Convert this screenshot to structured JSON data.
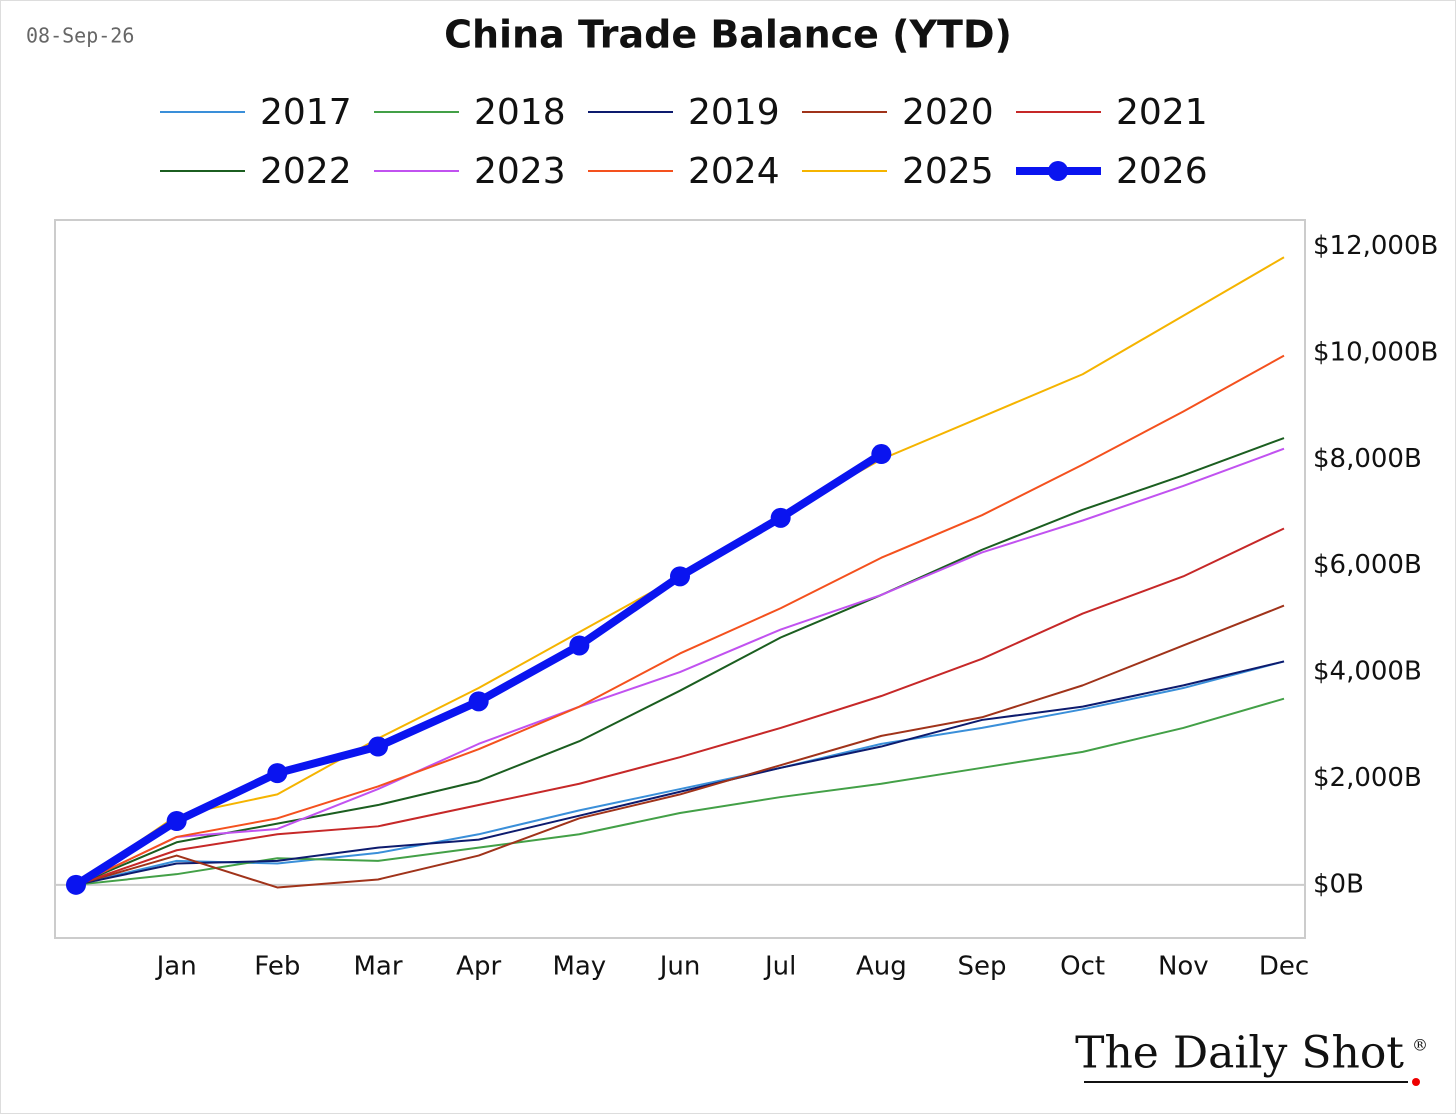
{
  "chart_data": {
    "type": "line",
    "date": "08-Sep-26",
    "title": "China Trade Balance (YTD)",
    "source": "The Daily Shot",
    "source_mark": "®",
    "categories": [
      null,
      "Jan",
      "Feb",
      "Mar",
      "Apr",
      "May",
      "Jun",
      "Jul",
      "Aug",
      "Sep",
      "Oct",
      "Nov",
      "Dec"
    ],
    "ylim": [
      -1000,
      12500
    ],
    "yticks": [
      {
        "value": 0,
        "label": "$0B"
      },
      {
        "value": 2000,
        "label": "$2,000B"
      },
      {
        "value": 4000,
        "label": "$4,000B"
      },
      {
        "value": 6000,
        "label": "$6,000B"
      },
      {
        "value": 8000,
        "label": "$8,000B"
      },
      {
        "value": 10000,
        "label": "$10,000B"
      },
      {
        "value": 12000,
        "label": "$12,000B"
      }
    ],
    "y_axis_side": "right",
    "zero_line": true,
    "legend": "top",
    "series": [
      {
        "name": "2017",
        "color": "#3a8fd9",
        "values": [
          0,
          450,
          400,
          600,
          950,
          1400,
          1800,
          2200,
          2650,
          2950,
          3300,
          3700,
          4200
        ]
      },
      {
        "name": "2018",
        "color": "#43a047",
        "values": [
          0,
          200,
          500,
          450,
          700,
          950,
          1350,
          1650,
          1900,
          2200,
          2500,
          2950,
          3500
        ]
      },
      {
        "name": "2019",
        "color": "#0d1b6e",
        "values": [
          0,
          400,
          450,
          700,
          850,
          1300,
          1750,
          2200,
          2600,
          3100,
          3350,
          3750,
          4200
        ]
      },
      {
        "name": "2020",
        "color": "#a0331a",
        "values": [
          0,
          550,
          -50,
          100,
          550,
          1250,
          1700,
          2250,
          2800,
          3150,
          3750,
          4500,
          5250
        ]
      },
      {
        "name": "2021",
        "color": "#c62828",
        "values": [
          0,
          650,
          950,
          1100,
          1500,
          1900,
          2400,
          2950,
          3550,
          4250,
          5100,
          5800,
          6700
        ]
      },
      {
        "name": "2022",
        "color": "#1b5e20",
        "values": [
          0,
          800,
          1150,
          1500,
          1950,
          2700,
          3650,
          4650,
          5450,
          6300,
          7050,
          7700,
          8400
        ]
      },
      {
        "name": "2023",
        "color": "#c152f0",
        "values": [
          0,
          900,
          1050,
          1800,
          2650,
          3350,
          4000,
          4800,
          5450,
          6250,
          6850,
          7500,
          8200
        ]
      },
      {
        "name": "2024",
        "color": "#f4511e",
        "values": [
          0,
          900,
          1250,
          1850,
          2550,
          3350,
          4350,
          5200,
          6150,
          6950,
          7900,
          8900,
          9950
        ]
      },
      {
        "name": "2025",
        "color": "#f5b400",
        "values": [
          0,
          1300,
          1700,
          2750,
          3700,
          4750,
          5800,
          6950,
          8000,
          8800,
          9600,
          10700,
          11800
        ]
      },
      {
        "name": "2026",
        "color": "#0a14f0",
        "width": 8,
        "markers": true,
        "values": [
          0,
          1200,
          2100,
          2600,
          3450,
          4500,
          5800,
          6900,
          8100,
          null,
          null,
          null,
          null
        ]
      }
    ]
  }
}
